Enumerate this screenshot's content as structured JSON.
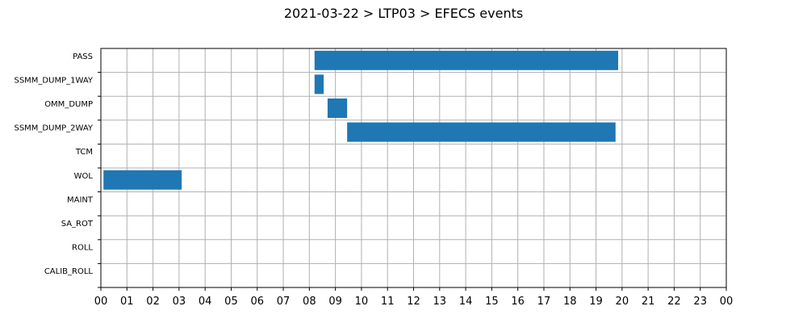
{
  "chart_data": {
    "type": "gantt",
    "title": "2021-03-22 > LTP03 > EFECS events",
    "xlabel": "",
    "ylabel": "",
    "xlim": [
      0,
      24
    ],
    "x_tick_labels": [
      "00",
      "01",
      "02",
      "03",
      "04",
      "05",
      "06",
      "07",
      "08",
      "09",
      "10",
      "11",
      "12",
      "13",
      "14",
      "15",
      "16",
      "17",
      "18",
      "19",
      "20",
      "21",
      "22",
      "23",
      "00"
    ],
    "categories": [
      "PASS",
      "SSMM_DUMP_1WAY",
      "OMM_DUMP",
      "SSMM_DUMP_2WAY",
      "TCM",
      "WOL",
      "MAINT",
      "SA_ROT",
      "ROLL",
      "CALIB_ROLL"
    ],
    "grid": true,
    "bar_color": "#1f77b4",
    "intervals": [
      {
        "category": "PASS",
        "start": 8.2,
        "end": 19.85
      },
      {
        "category": "SSMM_DUMP_1WAY",
        "start": 8.2,
        "end": 8.55
      },
      {
        "category": "OMM_DUMP",
        "start": 8.7,
        "end": 9.45
      },
      {
        "category": "SSMM_DUMP_2WAY",
        "start": 9.45,
        "end": 19.75
      },
      {
        "category": "WOL",
        "start": 0.1,
        "end": 3.1
      }
    ]
  }
}
